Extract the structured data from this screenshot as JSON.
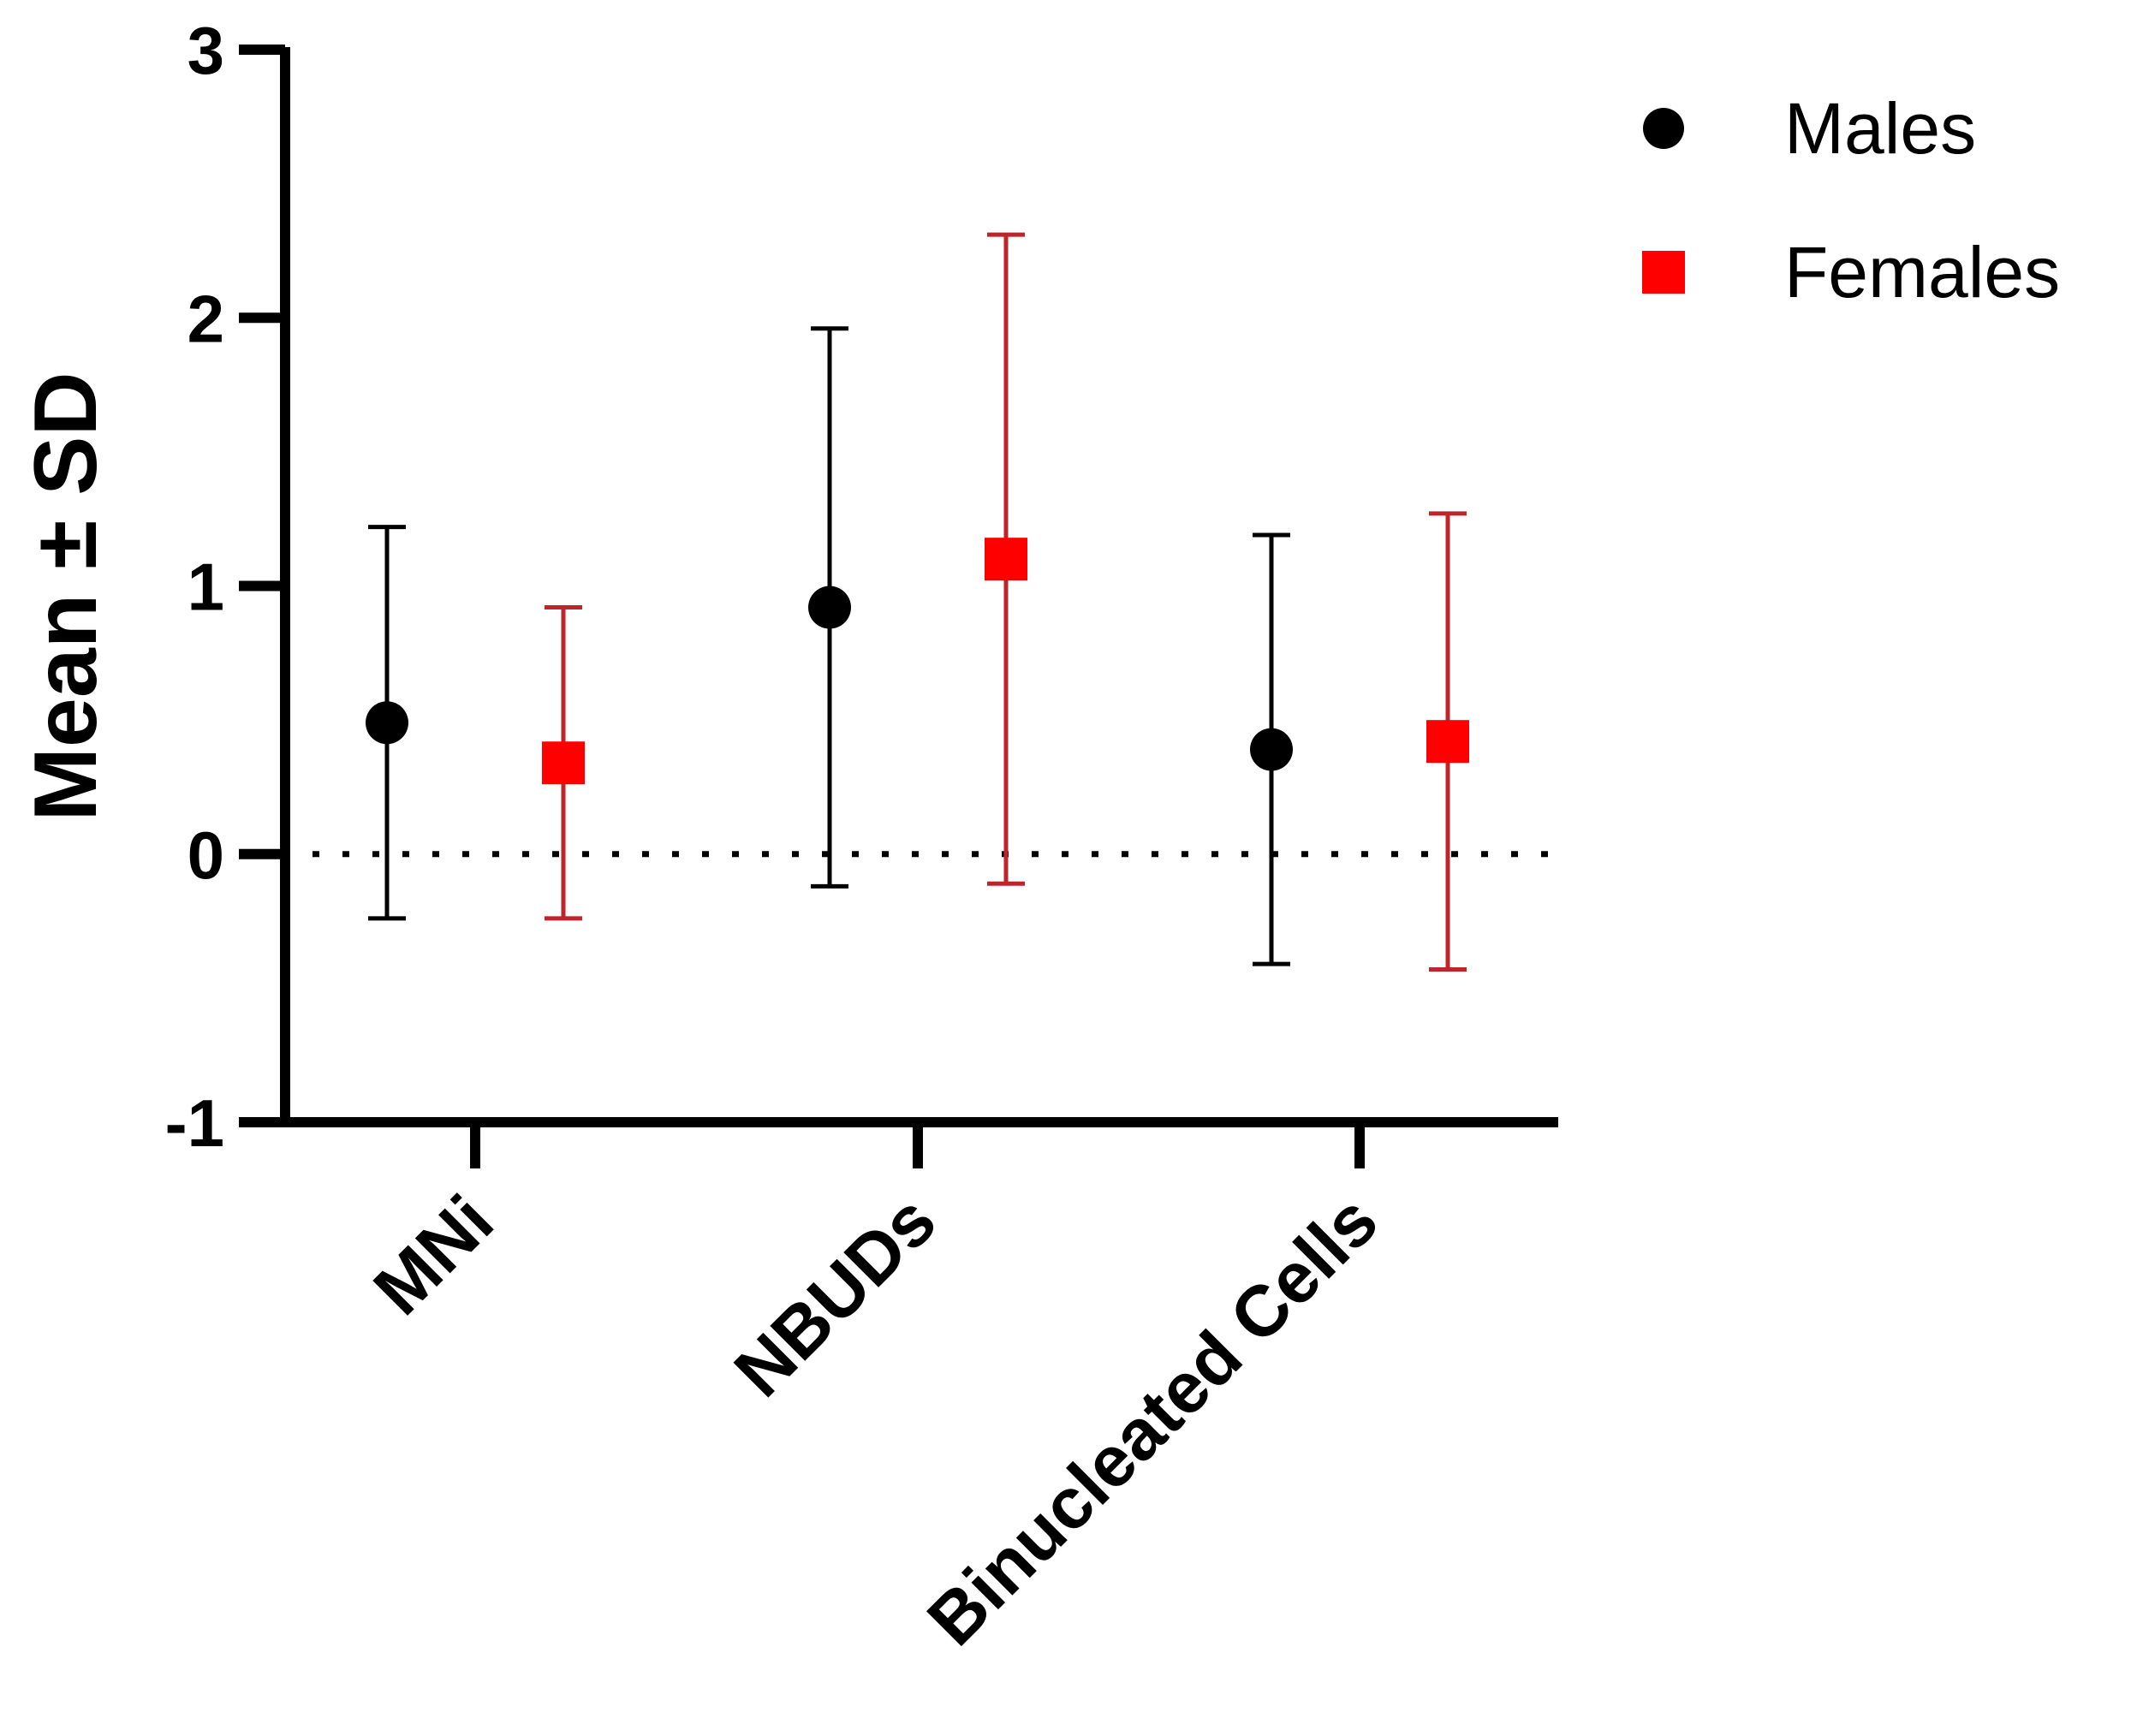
{
  "chart_data": {
    "type": "scatter",
    "title": "",
    "xlabel": "",
    "ylabel": "Mean ± SD",
    "ylim": [
      -1,
      3
    ],
    "yticks": [
      -1,
      0,
      1,
      2,
      3
    ],
    "ytick_labels": [
      "-1",
      "0",
      "1",
      "2",
      "3"
    ],
    "categories": [
      "MNi",
      "NBUDs",
      "Binucleated Cells"
    ],
    "reference_line": 0,
    "grid": false,
    "legend_position": "top-right",
    "series": [
      {
        "name": "Males",
        "marker": "circle",
        "color": "#000000",
        "mean": [
          0.49,
          0.92,
          0.39
        ],
        "sd": [
          0.73,
          1.04,
          0.8
        ]
      },
      {
        "name": "Females",
        "marker": "square",
        "color": "#ff0000",
        "errorbar_color": "#c0242b",
        "mean": [
          0.34,
          1.1,
          0.42
        ],
        "sd": [
          0.58,
          1.21,
          0.85
        ]
      }
    ]
  }
}
